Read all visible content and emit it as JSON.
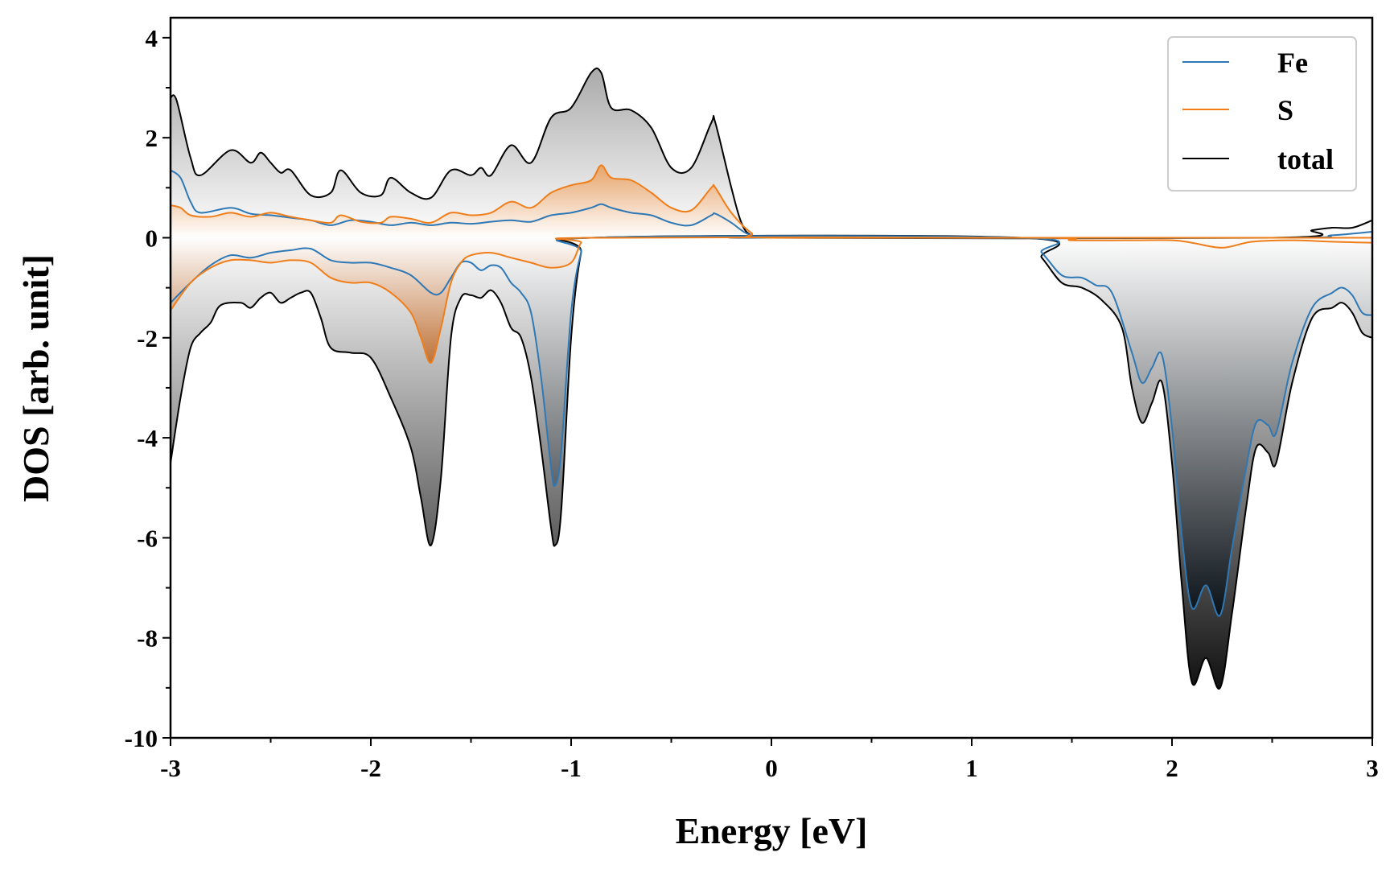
{
  "chart_data": {
    "type": "area",
    "xlabel": "Energy [eV]",
    "ylabel": "DOS [arb. unit]",
    "xlim": [
      -3,
      3
    ],
    "ylim": [
      -10,
      4.4
    ],
    "x_ticks": [
      -3,
      -2,
      -1,
      0,
      1,
      2,
      3
    ],
    "y_ticks": [
      -10,
      -8,
      -6,
      -4,
      -2,
      0,
      2,
      4
    ],
    "grid": false,
    "legend_position": "top-right",
    "series": [
      {
        "name": "Fe",
        "color": "#2e78b5",
        "up": [
          [
            -3,
            1.35
          ],
          [
            -2.95,
            1.2
          ],
          [
            -2.9,
            0.72
          ],
          [
            -2.85,
            0.5
          ],
          [
            -2.7,
            0.6
          ],
          [
            -2.6,
            0.48
          ],
          [
            -2.5,
            0.45
          ],
          [
            -2.4,
            0.4
          ],
          [
            -2.3,
            0.35
          ],
          [
            -2.2,
            0.25
          ],
          [
            -2.1,
            0.35
          ],
          [
            -2.0,
            0.32
          ],
          [
            -1.9,
            0.25
          ],
          [
            -1.8,
            0.3
          ],
          [
            -1.7,
            0.25
          ],
          [
            -1.6,
            0.3
          ],
          [
            -1.5,
            0.28
          ],
          [
            -1.4,
            0.32
          ],
          [
            -1.3,
            0.35
          ],
          [
            -1.2,
            0.32
          ],
          [
            -1.1,
            0.45
          ],
          [
            -1.0,
            0.5
          ],
          [
            -0.9,
            0.6
          ],
          [
            -0.85,
            0.67
          ],
          [
            -0.8,
            0.6
          ],
          [
            -0.7,
            0.5
          ],
          [
            -0.6,
            0.45
          ],
          [
            -0.5,
            0.3
          ],
          [
            -0.4,
            0.25
          ],
          [
            -0.3,
            0.45
          ],
          [
            -0.28,
            0.48
          ],
          [
            -0.2,
            0.3
          ],
          [
            -0.15,
            0.15
          ],
          [
            -0.1,
            0.05
          ],
          [
            0,
            0.0
          ],
          [
            2.5,
            0.0
          ],
          [
            2.8,
            0.05
          ],
          [
            3,
            0.12
          ]
        ],
        "down": [
          [
            -3,
            -1.3
          ],
          [
            -2.9,
            -0.9
          ],
          [
            -2.8,
            -0.55
          ],
          [
            -2.7,
            -0.35
          ],
          [
            -2.6,
            -0.4
          ],
          [
            -2.5,
            -0.3
          ],
          [
            -2.4,
            -0.25
          ],
          [
            -2.3,
            -0.22
          ],
          [
            -2.2,
            -0.45
          ],
          [
            -2.1,
            -0.5
          ],
          [
            -2.0,
            -0.5
          ],
          [
            -1.9,
            -0.6
          ],
          [
            -1.8,
            -0.75
          ],
          [
            -1.7,
            -1.1
          ],
          [
            -1.65,
            -1.1
          ],
          [
            -1.6,
            -0.8
          ],
          [
            -1.55,
            -0.5
          ],
          [
            -1.5,
            -0.5
          ],
          [
            -1.45,
            -0.65
          ],
          [
            -1.4,
            -0.55
          ],
          [
            -1.35,
            -0.6
          ],
          [
            -1.3,
            -0.9
          ],
          [
            -1.25,
            -1.1
          ],
          [
            -1.2,
            -1.5
          ],
          [
            -1.15,
            -2.8
          ],
          [
            -1.1,
            -4.6
          ],
          [
            -1.08,
            -4.95
          ],
          [
            -1.05,
            -4.3
          ],
          [
            -1.0,
            -1.5
          ],
          [
            -0.95,
            -0.3
          ],
          [
            -0.9,
            0.0
          ],
          [
            1.25,
            0.0
          ],
          [
            1.35,
            -0.3
          ],
          [
            1.45,
            -0.75
          ],
          [
            1.55,
            -0.8
          ],
          [
            1.62,
            -0.95
          ],
          [
            1.7,
            -1.1
          ],
          [
            1.8,
            -2.3
          ],
          [
            1.85,
            -2.9
          ],
          [
            1.9,
            -2.6
          ],
          [
            1.95,
            -2.35
          ],
          [
            2.0,
            -3.8
          ],
          [
            2.05,
            -6.0
          ],
          [
            2.1,
            -7.4
          ],
          [
            2.17,
            -6.95
          ],
          [
            2.24,
            -7.55
          ],
          [
            2.3,
            -6.2
          ],
          [
            2.37,
            -4.6
          ],
          [
            2.42,
            -3.7
          ],
          [
            2.48,
            -3.75
          ],
          [
            2.52,
            -3.9
          ],
          [
            2.6,
            -2.5
          ],
          [
            2.7,
            -1.4
          ],
          [
            2.8,
            -1.1
          ],
          [
            2.85,
            -1.0
          ],
          [
            2.9,
            -1.15
          ],
          [
            2.95,
            -1.5
          ],
          [
            3,
            -1.55
          ]
        ]
      },
      {
        "name": "S",
        "color": "#ef7e1a",
        "up": [
          [
            -3,
            0.65
          ],
          [
            -2.95,
            0.6
          ],
          [
            -2.9,
            0.45
          ],
          [
            -2.8,
            0.42
          ],
          [
            -2.7,
            0.5
          ],
          [
            -2.6,
            0.42
          ],
          [
            -2.5,
            0.5
          ],
          [
            -2.4,
            0.42
          ],
          [
            -2.3,
            0.35
          ],
          [
            -2.2,
            0.3
          ],
          [
            -2.15,
            0.45
          ],
          [
            -2.05,
            0.32
          ],
          [
            -1.95,
            0.3
          ],
          [
            -1.9,
            0.42
          ],
          [
            -1.8,
            0.38
          ],
          [
            -1.7,
            0.3
          ],
          [
            -1.6,
            0.5
          ],
          [
            -1.5,
            0.45
          ],
          [
            -1.4,
            0.5
          ],
          [
            -1.3,
            0.72
          ],
          [
            -1.2,
            0.6
          ],
          [
            -1.1,
            0.9
          ],
          [
            -1.0,
            1.05
          ],
          [
            -0.9,
            1.15
          ],
          [
            -0.85,
            1.45
          ],
          [
            -0.8,
            1.2
          ],
          [
            -0.7,
            1.15
          ],
          [
            -0.6,
            0.9
          ],
          [
            -0.5,
            0.6
          ],
          [
            -0.4,
            0.55
          ],
          [
            -0.3,
            1.0
          ],
          [
            -0.28,
            1.0
          ],
          [
            -0.2,
            0.5
          ],
          [
            -0.1,
            0.1
          ],
          [
            0,
            0.0
          ],
          [
            1.3,
            0.0
          ],
          [
            3,
            0.0
          ]
        ],
        "down": [
          [
            -3,
            -1.45
          ],
          [
            -2.9,
            -0.9
          ],
          [
            -2.8,
            -0.6
          ],
          [
            -2.7,
            -0.45
          ],
          [
            -2.6,
            -0.45
          ],
          [
            -2.5,
            -0.5
          ],
          [
            -2.4,
            -0.45
          ],
          [
            -2.3,
            -0.5
          ],
          [
            -2.2,
            -0.8
          ],
          [
            -2.1,
            -0.9
          ],
          [
            -2.0,
            -0.9
          ],
          [
            -1.9,
            -1.1
          ],
          [
            -1.8,
            -1.5
          ],
          [
            -1.75,
            -2.0
          ],
          [
            -1.7,
            -2.5
          ],
          [
            -1.65,
            -1.8
          ],
          [
            -1.6,
            -0.9
          ],
          [
            -1.55,
            -0.5
          ],
          [
            -1.5,
            -0.35
          ],
          [
            -1.4,
            -0.3
          ],
          [
            -1.3,
            -0.4
          ],
          [
            -1.2,
            -0.5
          ],
          [
            -1.1,
            -0.6
          ],
          [
            -1.0,
            -0.5
          ],
          [
            -0.95,
            -0.1
          ],
          [
            -0.9,
            0.0
          ],
          [
            1.3,
            0.0
          ],
          [
            1.5,
            -0.05
          ],
          [
            1.8,
            -0.05
          ],
          [
            2.0,
            -0.05
          ],
          [
            2.1,
            -0.1
          ],
          [
            2.25,
            -0.2
          ],
          [
            2.4,
            -0.08
          ],
          [
            2.6,
            -0.05
          ],
          [
            2.8,
            -0.08
          ],
          [
            3,
            -0.1
          ]
        ]
      },
      {
        "name": "total",
        "color": "#000000",
        "up": [
          [
            -3,
            2.8
          ],
          [
            -2.97,
            2.75
          ],
          [
            -2.9,
            1.6
          ],
          [
            -2.85,
            1.25
          ],
          [
            -2.7,
            1.75
          ],
          [
            -2.6,
            1.5
          ],
          [
            -2.55,
            1.7
          ],
          [
            -2.5,
            1.5
          ],
          [
            -2.45,
            1.3
          ],
          [
            -2.4,
            1.35
          ],
          [
            -2.3,
            0.85
          ],
          [
            -2.2,
            0.9
          ],
          [
            -2.15,
            1.35
          ],
          [
            -2.05,
            0.9
          ],
          [
            -1.95,
            0.85
          ],
          [
            -1.9,
            1.2
          ],
          [
            -1.8,
            0.9
          ],
          [
            -1.7,
            0.8
          ],
          [
            -1.6,
            1.35
          ],
          [
            -1.5,
            1.25
          ],
          [
            -1.45,
            1.4
          ],
          [
            -1.4,
            1.25
          ],
          [
            -1.3,
            1.85
          ],
          [
            -1.2,
            1.5
          ],
          [
            -1.1,
            2.4
          ],
          [
            -1.0,
            2.6
          ],
          [
            -0.9,
            3.3
          ],
          [
            -0.85,
            3.3
          ],
          [
            -0.8,
            2.6
          ],
          [
            -0.7,
            2.55
          ],
          [
            -0.6,
            2.2
          ],
          [
            -0.5,
            1.4
          ],
          [
            -0.4,
            1.4
          ],
          [
            -0.3,
            2.3
          ],
          [
            -0.28,
            2.3
          ],
          [
            -0.2,
            1.0
          ],
          [
            -0.15,
            0.3
          ],
          [
            -0.1,
            0.05
          ],
          [
            0,
            0.0
          ],
          [
            2.5,
            0.0
          ],
          [
            2.7,
            0.15
          ],
          [
            2.8,
            0.2
          ],
          [
            2.9,
            0.2
          ],
          [
            3,
            0.35
          ]
        ],
        "down": [
          [
            -3,
            -4.5
          ],
          [
            -2.95,
            -3.2
          ],
          [
            -2.9,
            -2.2
          ],
          [
            -2.85,
            -1.9
          ],
          [
            -2.8,
            -1.7
          ],
          [
            -2.75,
            -1.35
          ],
          [
            -2.65,
            -1.3
          ],
          [
            -2.6,
            -1.4
          ],
          [
            -2.55,
            -1.2
          ],
          [
            -2.5,
            -1.1
          ],
          [
            -2.45,
            -1.3
          ],
          [
            -2.4,
            -1.2
          ],
          [
            -2.35,
            -1.1
          ],
          [
            -2.3,
            -1.1
          ],
          [
            -2.25,
            -1.6
          ],
          [
            -2.2,
            -2.2
          ],
          [
            -2.1,
            -2.3
          ],
          [
            -2.0,
            -2.4
          ],
          [
            -1.9,
            -3.2
          ],
          [
            -1.8,
            -4.2
          ],
          [
            -1.75,
            -5.2
          ],
          [
            -1.7,
            -6.15
          ],
          [
            -1.65,
            -4.8
          ],
          [
            -1.6,
            -2.0
          ],
          [
            -1.55,
            -1.2
          ],
          [
            -1.5,
            -1.15
          ],
          [
            -1.45,
            -1.2
          ],
          [
            -1.4,
            -1.05
          ],
          [
            -1.35,
            -1.3
          ],
          [
            -1.3,
            -1.8
          ],
          [
            -1.25,
            -2.0
          ],
          [
            -1.2,
            -2.8
          ],
          [
            -1.15,
            -4.2
          ],
          [
            -1.1,
            -5.8
          ],
          [
            -1.08,
            -6.15
          ],
          [
            -1.05,
            -5.5
          ],
          [
            -1.0,
            -2.0
          ],
          [
            -0.95,
            -0.3
          ],
          [
            -0.9,
            0.0
          ],
          [
            1.25,
            0.0
          ],
          [
            1.35,
            -0.4
          ],
          [
            1.45,
            -0.9
          ],
          [
            1.55,
            -1.0
          ],
          [
            1.65,
            -1.25
          ],
          [
            1.75,
            -1.8
          ],
          [
            1.8,
            -3.0
          ],
          [
            1.85,
            -3.7
          ],
          [
            1.9,
            -3.3
          ],
          [
            1.95,
            -2.9
          ],
          [
            2.0,
            -4.5
          ],
          [
            2.05,
            -7.0
          ],
          [
            2.1,
            -8.9
          ],
          [
            2.17,
            -8.4
          ],
          [
            2.24,
            -9.0
          ],
          [
            2.3,
            -7.5
          ],
          [
            2.37,
            -5.4
          ],
          [
            2.42,
            -4.2
          ],
          [
            2.48,
            -4.3
          ],
          [
            2.52,
            -4.5
          ],
          [
            2.6,
            -2.9
          ],
          [
            2.7,
            -1.6
          ],
          [
            2.8,
            -1.4
          ],
          [
            2.85,
            -1.3
          ],
          [
            2.9,
            -1.5
          ],
          [
            2.95,
            -1.9
          ],
          [
            3,
            -2.0
          ]
        ]
      }
    ]
  }
}
